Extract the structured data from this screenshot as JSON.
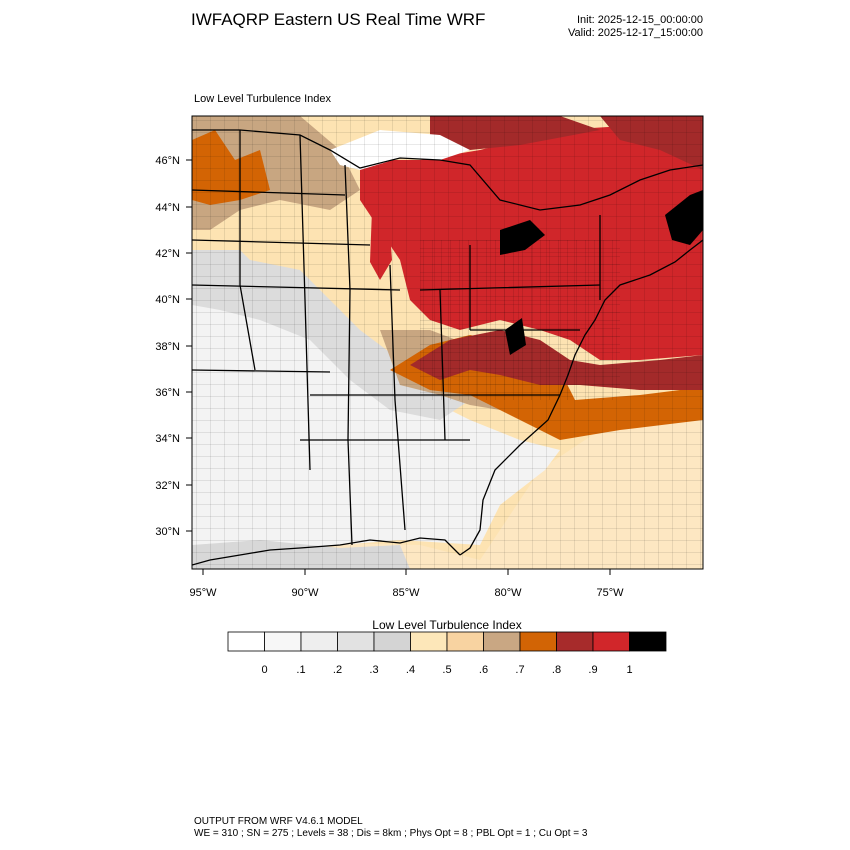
{
  "header": {
    "title": "IWFAQRP Eastern US Real Time WRF",
    "init": "Init: 2025-12-15_00:00:00",
    "valid": "Valid: 2025-12-17_15:00:00"
  },
  "map": {
    "field_label": "Low Level Turbulence Index",
    "lat_labels": [
      "46°N",
      "44°N",
      "42°N",
      "40°N",
      "38°N",
      "36°N",
      "34°N",
      "32°N",
      "30°N"
    ],
    "lon_labels": [
      "95°W",
      "90°W",
      "85°W",
      "80°W",
      "75°W"
    ],
    "colors": {
      "water": "#ffffff",
      "low": "#f6f6f6",
      "mid_gray": "#d7d7d7",
      "cream": "#fde3b2",
      "tan": "#f6cf9b",
      "brown_tan": "#c8a681",
      "orange": "#d36404",
      "dark_red": "#a32a2a",
      "red": "#d0262a",
      "black": "#000000"
    }
  },
  "colorbar": {
    "title": "Low Level Turbulence Index",
    "colors": [
      "#ffffff",
      "#f7f7f7",
      "#eeeeee",
      "#e2e2e2",
      "#d4d4d4",
      "#fde7b9",
      "#f8d3a1",
      "#c9a783",
      "#d26405",
      "#a72b2b",
      "#d1262a",
      "#000000"
    ],
    "tick_labels": [
      "0",
      ".1",
      ".2",
      ".3",
      ".4",
      ".5",
      ".6",
      ".7",
      ".8",
      ".9",
      "1"
    ]
  },
  "footer": {
    "line1": "OUTPUT FROM WRF V4.6.1 MODEL",
    "line2": "WE = 310 ; SN = 275 ; Levels = 38 ; Dis = 8km ; Phys Opt = 8 ; PBL Opt = 1 ; Cu Opt = 3"
  }
}
